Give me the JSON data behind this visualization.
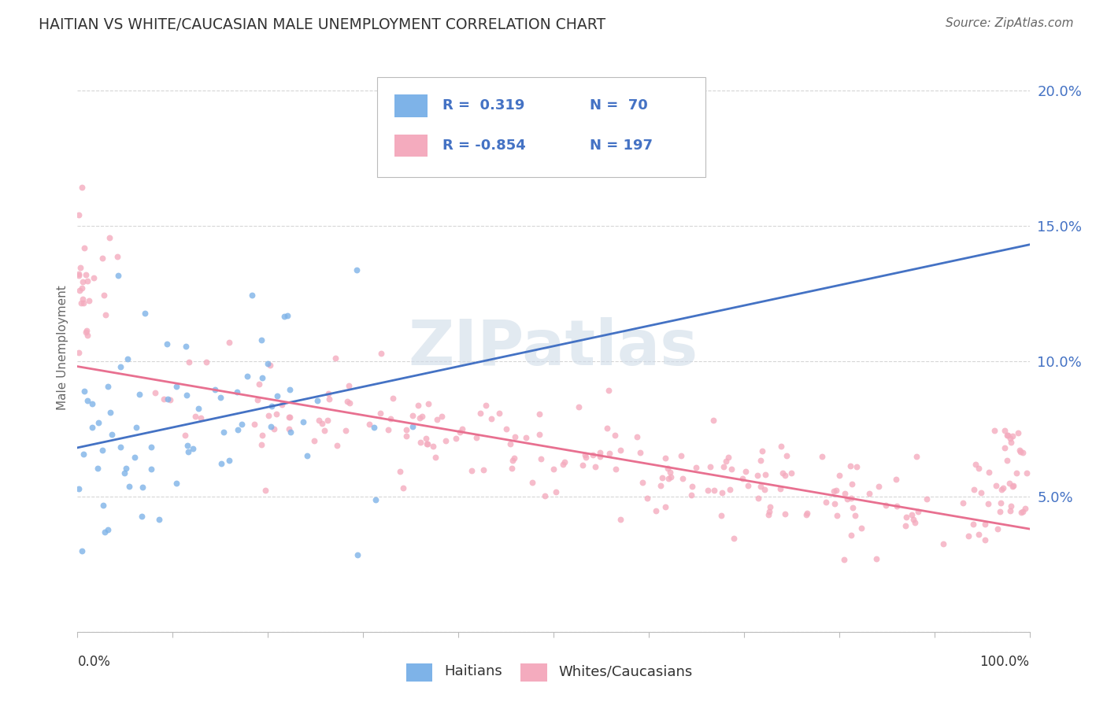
{
  "title": "HAITIAN VS WHITE/CAUCASIAN MALE UNEMPLOYMENT CORRELATION CHART",
  "source": "Source: ZipAtlas.com",
  "ylabel": "Male Unemployment",
  "yticks": [
    0.0,
    0.05,
    0.1,
    0.15,
    0.2
  ],
  "ytick_labels": [
    "",
    "5.0%",
    "10.0%",
    "15.0%",
    "20.0%"
  ],
  "haitian_color": "#7EB3E8",
  "white_color": "#F4ABBE",
  "haitian_line_color": "#4472C4",
  "white_line_color": "#E87090",
  "watermark": "ZIPatlas",
  "watermark_color": "#D0DCE8",
  "haitian_R": 0.319,
  "haitian_N": 70,
  "white_R": -0.854,
  "white_N": 197,
  "background_color": "#FFFFFF",
  "grid_color": "#CCCCCC",
  "xlim": [
    0,
    1
  ],
  "ylim": [
    0.0,
    0.21
  ],
  "haitian_intercept": 0.068,
  "haitian_slope": 0.075,
  "white_intercept": 0.098,
  "white_slope": -0.06,
  "legend_R1": "R =  0.319",
  "legend_N1": "N =  70",
  "legend_R2": "R = -0.854",
  "legend_N2": "N = 197",
  "label_color": "#4472C4",
  "tick_label_color": "#4472C4"
}
